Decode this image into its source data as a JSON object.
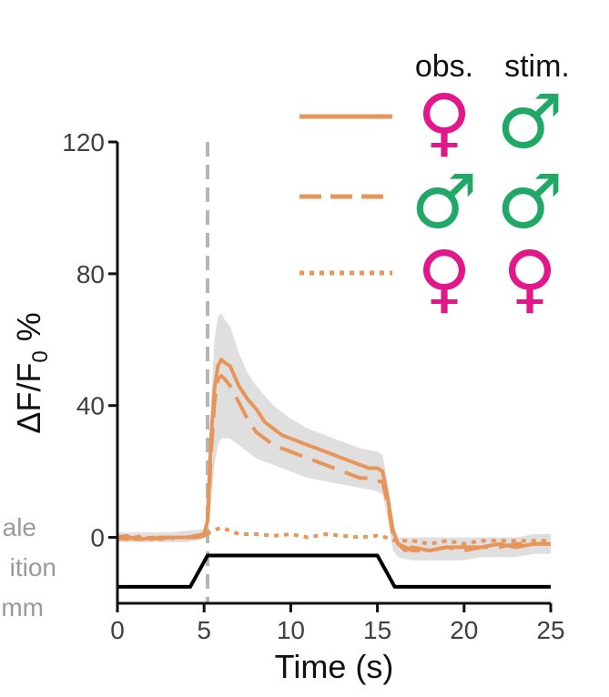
{
  "colors": {
    "trace": "#E8955A",
    "band": "#D9D9D9",
    "female": "#E0188A",
    "male": "#22A866",
    "axis": "#111111",
    "stim_line": "#B5B5B5",
    "stim_trace": "#000000",
    "side_text": "#9A9A9A"
  },
  "legend": {
    "header_observer": "obs.",
    "header_stimulus": "stim.",
    "symbols": {
      "female": "♀",
      "male": "♂"
    },
    "rows": [
      {
        "style": "solid",
        "observer": "female",
        "stimulus": "male"
      },
      {
        "style": "dashed",
        "observer": "male",
        "stimulus": "male"
      },
      {
        "style": "dotted",
        "observer": "female",
        "stimulus": "female"
      }
    ]
  },
  "side_labels": [
    "ale",
    "ition",
    "mm"
  ],
  "chart_data": {
    "type": "line",
    "title": "",
    "xlabel": "Time (s)",
    "ylabel_main": "ΔF/F",
    "ylabel_sub": "0",
    "ylabel_suffix": " %",
    "xlim": [
      0,
      25
    ],
    "ylim": [
      -20,
      120
    ],
    "xticks": [
      0,
      5,
      10,
      15,
      20,
      25
    ],
    "yticks": [
      0,
      40,
      80,
      120
    ],
    "stim_onset": 5.2,
    "series": [
      {
        "name": "female obs. / male stim.",
        "style": "solid",
        "x": [
          0,
          0.5,
          1,
          1.5,
          2,
          2.5,
          3,
          3.5,
          4,
          4.5,
          5,
          5.2,
          5.4,
          5.6,
          5.8,
          6,
          6.2,
          6.5,
          7,
          7.5,
          8,
          8.5,
          9,
          9.5,
          10,
          10.5,
          11,
          11.5,
          12,
          12.5,
          13,
          13.5,
          14,
          14.5,
          15,
          15.3,
          15.6,
          15.9,
          16.2,
          16.6,
          17,
          18,
          19,
          20,
          21,
          22,
          23,
          24,
          25
        ],
        "y": [
          0,
          0.5,
          -0.5,
          -0.5,
          0,
          -0.5,
          0,
          0,
          0,
          0.5,
          1,
          5,
          30,
          45,
          52,
          54,
          53,
          52,
          46,
          42,
          39,
          35,
          33,
          31,
          30,
          29,
          28,
          27,
          26,
          25,
          24,
          23,
          22,
          21,
          21,
          20,
          12,
          2,
          -2,
          -4,
          -3,
          -4,
          -3,
          -3,
          -3,
          -2,
          -3,
          -2,
          -2
        ]
      },
      {
        "name": "male obs. / male stim.",
        "style": "dashed",
        "x": [
          0,
          0.5,
          1,
          1.5,
          2,
          2.5,
          3,
          3.5,
          4,
          4.5,
          5,
          5.2,
          5.4,
          5.6,
          5.8,
          6,
          6.2,
          6.5,
          7,
          7.5,
          8,
          8.5,
          9,
          9.5,
          10,
          10.5,
          11,
          11.5,
          12,
          12.5,
          13,
          13.5,
          14,
          14.5,
          15,
          15.3,
          15.6,
          15.9,
          16.2,
          16.6,
          17,
          18,
          19,
          20,
          21,
          22,
          23,
          24,
          25
        ],
        "y": [
          0,
          -0.5,
          0,
          0.5,
          -0.5,
          0,
          0,
          -0.5,
          0,
          0,
          0.5,
          4,
          25,
          41,
          48,
          49,
          48,
          46,
          41,
          36,
          32,
          30,
          28,
          27,
          26,
          25,
          24,
          23,
          22,
          21,
          20,
          19,
          18,
          18,
          17,
          17,
          10,
          1,
          -2,
          -3,
          -4,
          -4,
          -3,
          -4,
          -3,
          -3,
          -2,
          -2,
          -2
        ]
      },
      {
        "name": "female obs. / female stim.",
        "style": "dotted",
        "x": [
          0,
          1,
          2,
          3,
          4,
          4.5,
          5,
          5.5,
          6,
          6.5,
          7,
          8,
          9,
          10,
          11,
          12,
          13,
          14,
          15,
          15.5,
          16,
          17,
          18,
          19,
          20,
          21,
          22,
          23,
          24,
          25
        ],
        "y": [
          -0.5,
          0,
          -0.5,
          0,
          0,
          0,
          0.5,
          2,
          3,
          2,
          1,
          1,
          0.5,
          1,
          0,
          1,
          0.5,
          0,
          0.5,
          0,
          -1,
          -1,
          -2,
          -1,
          -2,
          -1,
          -1,
          -1,
          -1,
          -1
        ]
      }
    ],
    "band": {
      "name": "SEM range",
      "x": [
        0,
        1,
        2,
        3,
        4,
        5,
        5.2,
        5.4,
        5.6,
        5.8,
        6,
        6.2,
        6.5,
        7,
        7.5,
        8,
        8.5,
        9,
        9.5,
        10,
        11,
        12,
        13,
        14,
        15,
        15.3,
        15.6,
        15.9,
        16.2,
        17,
        18,
        19,
        20,
        21,
        22,
        23,
        24,
        25
      ],
      "upper": [
        1.5,
        1.5,
        1.5,
        1.5,
        2,
        2.5,
        8,
        40,
        60,
        67,
        68,
        66,
        64,
        56,
        50,
        46,
        43,
        40,
        38,
        36,
        33,
        31,
        29,
        27,
        26,
        25,
        16,
        4,
        0,
        0,
        0,
        0,
        0,
        0,
        0,
        0,
        1,
        1
      ],
      "lower": [
        -1.5,
        -1.5,
        -1.5,
        -1.5,
        -1.5,
        -0.5,
        1,
        10,
        22,
        28,
        30,
        30,
        30,
        28,
        26,
        24,
        23,
        22,
        21,
        20,
        18,
        17,
        16,
        15,
        14,
        13,
        6,
        -4,
        -6,
        -7,
        -7,
        -7,
        -7,
        -6,
        -6,
        -6,
        -5,
        -5
      ]
    },
    "stimulus_trace": {
      "name": "stimulus position",
      "x": [
        0,
        4.2,
        5.2,
        15,
        16,
        25
      ],
      "level": [
        "low",
        "low",
        "high",
        "high",
        "low",
        "low"
      ],
      "y_low": -15,
      "y_high": -5.5
    }
  }
}
